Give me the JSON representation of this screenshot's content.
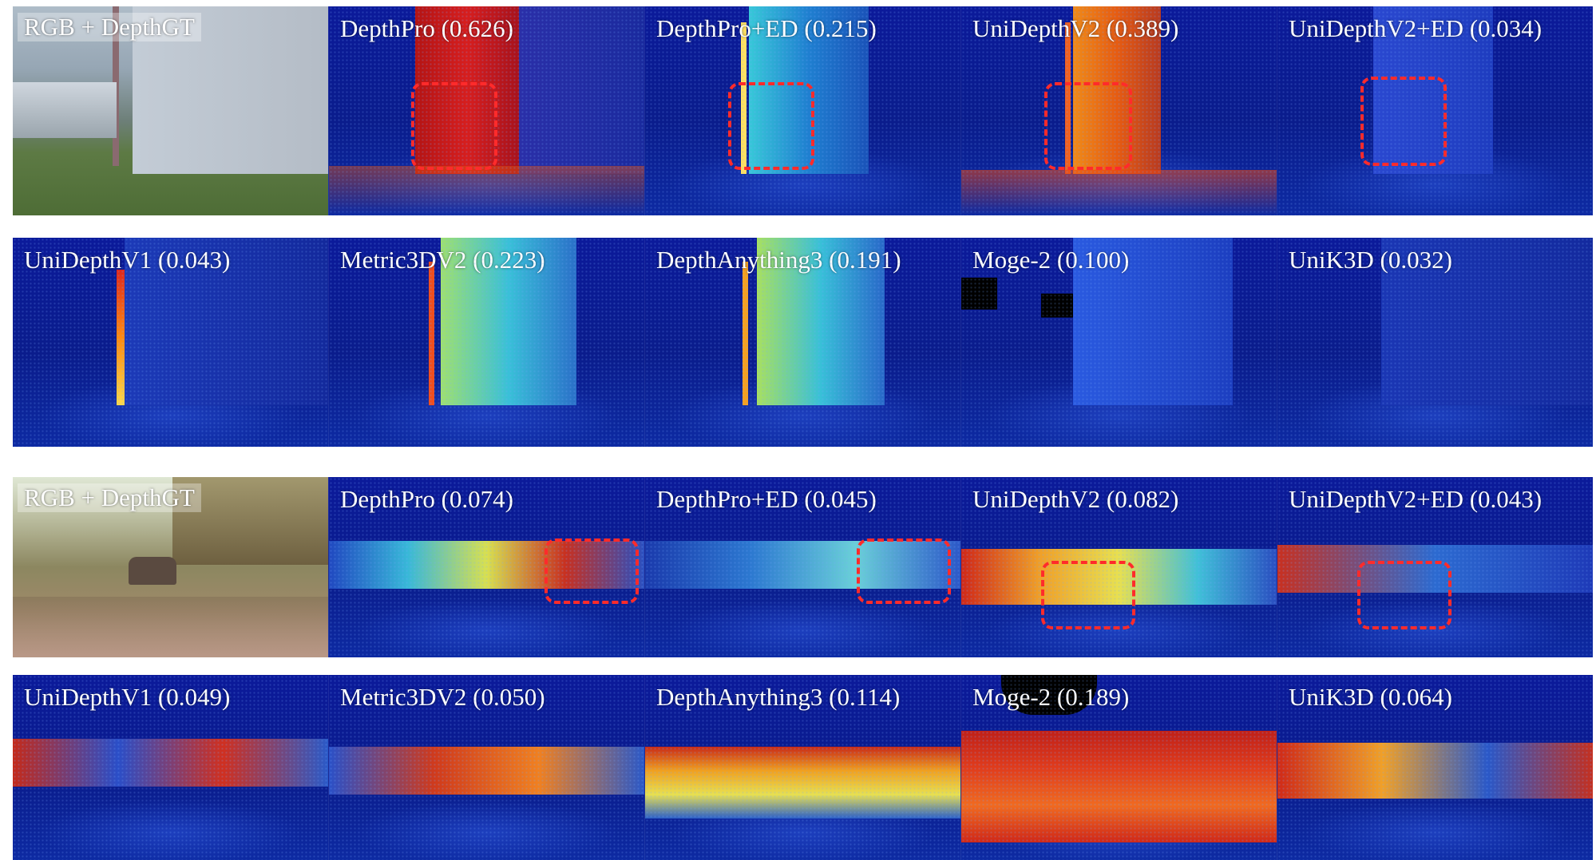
{
  "rows": [
    [
      "RGB + DepthGT",
      "DepthPro (0.626)",
      "DepthPro+ED (0.215)",
      "UniDepthV2 (0.389)",
      "UniDepthV2+ED (0.034)"
    ],
    [
      "UniDepthV1 (0.043)",
      "Metric3DV2 (0.223)",
      "DepthAnything3 (0.191)",
      "Moge-2 (0.100)",
      "UniK3D (0.032)"
    ],
    [
      "RGB + DepthGT",
      "DepthPro (0.074)",
      "DepthPro+ED (0.045)",
      "UniDepthV2 (0.082)",
      "UniDepthV2+ED (0.043)"
    ],
    [
      "UniDepthV1 (0.049)",
      "Metric3DV2 (0.050)",
      "DepthAnything3 (0.114)",
      "Moge-2 (0.189)",
      "UniK3D (0.064)"
    ]
  ],
  "colors": {
    "highlight": "#ff2b2b",
    "depth_far": "#0b1a9a",
    "depth_near": "#c8141e"
  }
}
